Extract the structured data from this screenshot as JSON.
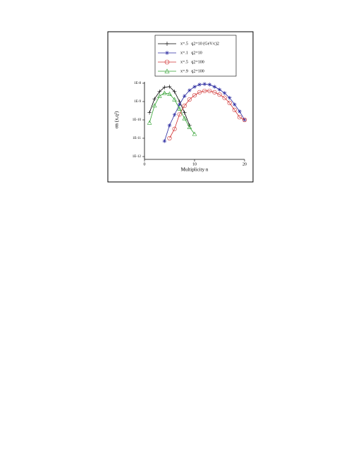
{
  "chart_data": {
    "type": "line",
    "xlabel": "Multiplicity  n",
    "ylabel": "σn (x,q²)",
    "log_y": true,
    "xlim": [
      0,
      20
    ],
    "xticks": [
      0,
      10,
      20
    ],
    "ylim": [
      1e-12,
      1e-08
    ],
    "yticks": [
      {
        "value": 1e-12,
        "label": "1E-12"
      },
      {
        "value": 1e-11,
        "label": "1E-11"
      },
      {
        "value": 1e-10,
        "label": "1E-10"
      },
      {
        "value": 1e-09,
        "label": "1E-9"
      },
      {
        "value": 1e-08,
        "label": "1E-8"
      }
    ],
    "legend": "top",
    "series": [
      {
        "name": "x=.5   q2=10 (GeV/c)2",
        "color": "#000000",
        "marker": "plus",
        "x": [
          1,
          2,
          3,
          4,
          5,
          6,
          7,
          8,
          9
        ],
        "values": [
          2.5e-10,
          1.4e-09,
          3.5e-09,
          6e-09,
          6.5e-09,
          3.5e-09,
          1e-09,
          2.5e-10,
          5e-11
        ]
      },
      {
        "name": "x=.1   q2=10",
        "color": "#2a2aa0",
        "marker": "star",
        "x": [
          4,
          5,
          6,
          7,
          8,
          9,
          10,
          11,
          12,
          13,
          14,
          15,
          16,
          17,
          18,
          19,
          20
        ],
        "values": [
          7e-12,
          5e-11,
          1.9e-10,
          7e-10,
          2e-09,
          4.1e-09,
          6.4e-09,
          8.4e-09,
          9e-09,
          8.4e-09,
          6.4e-09,
          4.5e-09,
          2.9e-09,
          1.6e-09,
          7e-10,
          2.9e-10,
          1e-10
        ]
      },
      {
        "name": "x=.5   q2=100",
        "color": "#d03030",
        "marker": "circle",
        "x": [
          5,
          6,
          7,
          8,
          9,
          10,
          11,
          12,
          13,
          14,
          15,
          16,
          17,
          18,
          19,
          20
        ],
        "values": [
          1e-11,
          3.2e-11,
          2e-10,
          5.9e-10,
          1.3e-09,
          2.2e-09,
          3.2e-09,
          3.8e-09,
          3.8e-09,
          3.2e-09,
          2.4e-09,
          1.6e-09,
          8.4e-10,
          3.5e-10,
          1.4e-10,
          1e-10
        ]
      },
      {
        "name": "x=.9   q2=100",
        "color": "#30a030",
        "marker": "triangle",
        "x": [
          1,
          2,
          3,
          4,
          5,
          6,
          7,
          8,
          9,
          10
        ],
        "values": [
          7e-11,
          6e-10,
          2e-09,
          2.9e-09,
          2.6e-09,
          1.3e-09,
          4e-10,
          1.2e-10,
          4e-11,
          1.7e-11
        ]
      }
    ]
  }
}
